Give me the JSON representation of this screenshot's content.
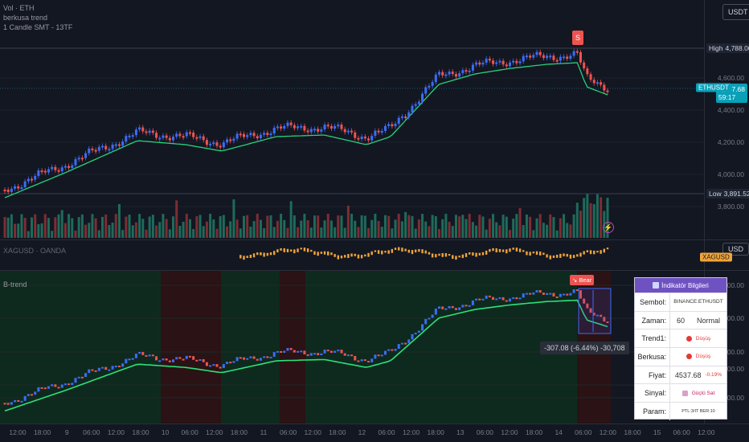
{
  "currency_button": "USDT",
  "main_pane": {
    "legend": [
      "Vol · ETH",
      "berkusa trend",
      "1 Candle SMT - 13TF"
    ],
    "y_ticks": [
      "4,600.00",
      "4,400.00",
      "4,200.00",
      "4,000.00",
      "3,800.00"
    ],
    "high_label": "High",
    "high_value": "4,788.00",
    "low_label": "Low",
    "low_value": "3,891.52",
    "symbol_tag": "ETHUSDT",
    "price_tag": "4,537.68",
    "countdown": "59:17",
    "sell_marker": "S",
    "colors": {
      "up": "#3d6cf5",
      "down": "#ef5350",
      "trend": "#26d27a",
      "resist": "#e0463e",
      "vol_up": "#1e6b5a",
      "vol_down": "#7c2e33"
    }
  },
  "sub_pane": {
    "legend": "XAGUSD · OANDA",
    "currency_button": "USD",
    "tag": "XAGUSD"
  },
  "btrend_pane": {
    "legend": "B-trend",
    "y_ticks": [
      "4,800.00",
      "4,600.00",
      "4,400.00",
      "4,200.00",
      "4,000.00"
    ],
    "bear_marker": "↘ Bear",
    "measure_label": "-307.08 (-6.44%) -30,708"
  },
  "info_panel": {
    "title": "İndikatör Bilgileri",
    "rows": [
      {
        "key": "Sembol:",
        "value": "BINANCE:ETHUSDT",
        "extra": ""
      },
      {
        "key": "Zaman:",
        "value": "60",
        "extra": "Normal"
      },
      {
        "key": "Trend1:",
        "value": "Düşüş",
        "extra": ""
      },
      {
        "key": "Berkusa:",
        "value": "Düşüş",
        "extra": ""
      },
      {
        "key": "Fiyat:",
        "value": "4537.68",
        "extra": "-0.19%"
      },
      {
        "key": "Sinyal:",
        "value": "Güçlü Sat",
        "extra": ""
      },
      {
        "key": "Param:",
        "value": "PTL:3/IT BER:10",
        "extra": ""
      }
    ]
  },
  "x_axis": [
    "12:00",
    "18:00",
    "9",
    "06:00",
    "12:00",
    "18:00",
    "10",
    "06:00",
    "12:00",
    "18:00",
    "11",
    "06:00",
    "12:00",
    "18:00",
    "12",
    "06:00",
    "12:00",
    "18:00",
    "13",
    "06:00",
    "12:00",
    "18:00",
    "14",
    "06:00",
    "12:00",
    "18:00",
    "15",
    "06:00",
    "12:00"
  ]
}
